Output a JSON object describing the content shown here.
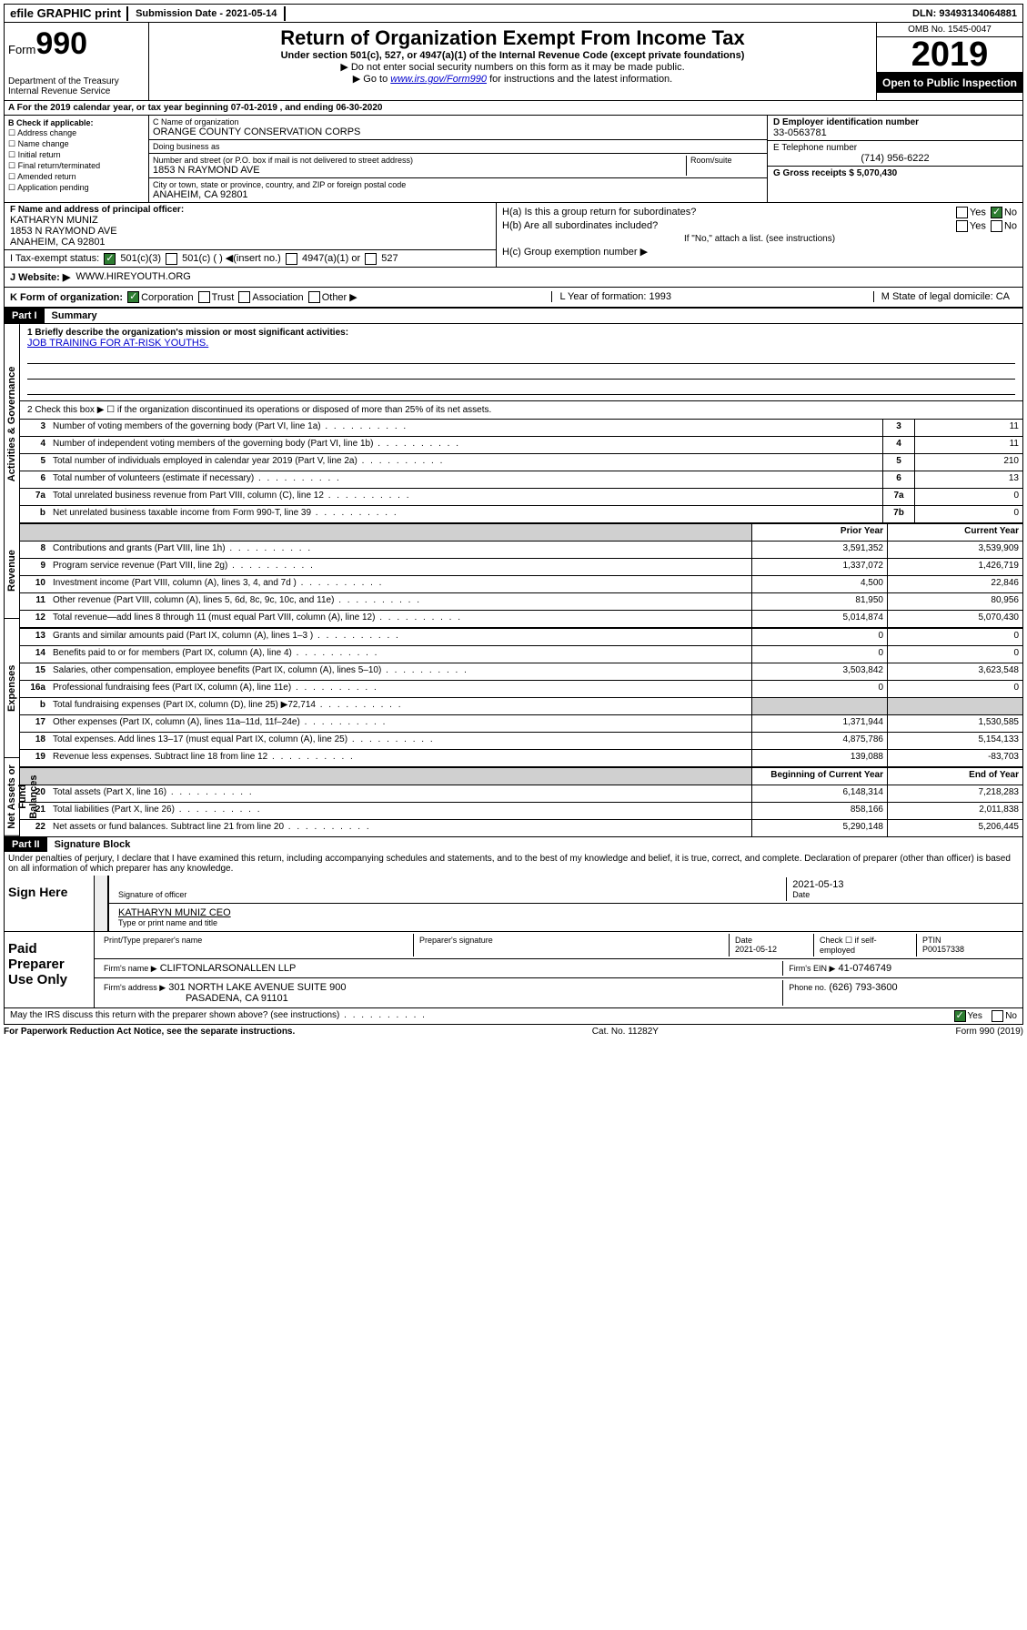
{
  "top": {
    "efile": "efile GRAPHIC print",
    "submission_label": "Submission Date - 2021-05-14",
    "dln": "DLN: 93493134064881"
  },
  "header": {
    "form_label": "Form",
    "form_number": "990",
    "dept": "Department of the Treasury Internal Revenue Service",
    "title": "Return of Organization Exempt From Income Tax",
    "sub1": "Under section 501(c), 527, or 4947(a)(1) of the Internal Revenue Code (except private foundations)",
    "sub2": "▶ Do not enter social security numbers on this form as it may be made public.",
    "sub3_pre": "▶ Go to ",
    "sub3_link": "www.irs.gov/Form990",
    "sub3_post": " for instructions and the latest information.",
    "omb": "OMB No. 1545-0047",
    "year": "2019",
    "inspection": "Open to Public Inspection"
  },
  "period": "A For the 2019 calendar year, or tax year beginning 07-01-2019   , and ending 06-30-2020",
  "checkB": {
    "label": "B Check if applicable:",
    "items": [
      "☐ Address change",
      "☐ Name change",
      "☐ Initial return",
      "☐ Final return/terminated",
      "☐ Amended return",
      "☐ Application pending"
    ]
  },
  "org": {
    "name_lbl": "C Name of organization",
    "name": "ORANGE COUNTY CONSERVATION CORPS",
    "dba_lbl": "Doing business as",
    "addr_lbl": "Number and street (or P.O. box if mail is not delivered to street address)",
    "room_lbl": "Room/suite",
    "addr": "1853 N RAYMOND AVE",
    "city_lbl": "City or town, state or province, country, and ZIP or foreign postal code",
    "city": "ANAHEIM, CA  92801"
  },
  "right": {
    "ein_lbl": "D Employer identification number",
    "ein": "33-0563781",
    "tel_lbl": "E Telephone number",
    "tel": "(714) 956-6222",
    "gross_lbl": "G Gross receipts $ 5,070,430"
  },
  "f": {
    "lbl": "F Name and address of principal officer:",
    "name": "KATHARYN MUNIZ",
    "addr1": "1853 N RAYMOND AVE",
    "addr2": "ANAHEIM, CA  92801"
  },
  "h": {
    "a": "H(a)  Is this a group return for subordinates?",
    "b": "H(b)  Are all subordinates included?",
    "b_note": "If \"No,\" attach a list. (see instructions)",
    "c": "H(c)  Group exemption number ▶",
    "yes": "Yes",
    "no": "No"
  },
  "i": {
    "lbl": "I   Tax-exempt status:",
    "c3": "501(c)(3)",
    "c": "501(c) (  ) ◀(insert no.)",
    "a1": "4947(a)(1) or",
    "s527": "527"
  },
  "j": {
    "lbl": "J   Website: ▶",
    "val": "WWW.HIREYOUTH.ORG"
  },
  "k": {
    "lbl": "K Form of organization:",
    "corp": "Corporation",
    "trust": "Trust",
    "assoc": "Association",
    "other": "Other ▶"
  },
  "l": {
    "lbl": "L Year of formation: 1993"
  },
  "m": {
    "lbl": "M State of legal domicile: CA"
  },
  "part1": {
    "hdr": "Part I",
    "title": "Summary",
    "mission_lbl": "1   Briefly describe the organization's mission or most significant activities:",
    "mission": "JOB TRAINING FOR AT-RISK YOUTHS.",
    "line2": "2   Check this box ▶ ☐  if the organization discontinued its operations or disposed of more than 25% of its net assets.",
    "sides": {
      "gov": "Activities & Governance",
      "rev": "Revenue",
      "exp": "Expenses",
      "net": "Net Assets or Fund Balances"
    },
    "cols": {
      "prior": "Prior Year",
      "current": "Current Year",
      "begin": "Beginning of Current Year",
      "end": "End of Year"
    },
    "gov_lines": [
      {
        "n": "3",
        "d": "Number of voting members of the governing body (Part VI, line 1a)",
        "b": "3",
        "v": "11"
      },
      {
        "n": "4",
        "d": "Number of independent voting members of the governing body (Part VI, line 1b)",
        "b": "4",
        "v": "11"
      },
      {
        "n": "5",
        "d": "Total number of individuals employed in calendar year 2019 (Part V, line 2a)",
        "b": "5",
        "v": "210"
      },
      {
        "n": "6",
        "d": "Total number of volunteers (estimate if necessary)",
        "b": "6",
        "v": "13"
      },
      {
        "n": "7a",
        "d": "Total unrelated business revenue from Part VIII, column (C), line 12",
        "b": "7a",
        "v": "0"
      },
      {
        "n": "b",
        "d": "Net unrelated business taxable income from Form 990-T, line 39",
        "b": "7b",
        "v": "0"
      }
    ],
    "rev_lines": [
      {
        "n": "8",
        "d": "Contributions and grants (Part VIII, line 1h)",
        "p": "3,591,352",
        "c": "3,539,909"
      },
      {
        "n": "9",
        "d": "Program service revenue (Part VIII, line 2g)",
        "p": "1,337,072",
        "c": "1,426,719"
      },
      {
        "n": "10",
        "d": "Investment income (Part VIII, column (A), lines 3, 4, and 7d )",
        "p": "4,500",
        "c": "22,846"
      },
      {
        "n": "11",
        "d": "Other revenue (Part VIII, column (A), lines 5, 6d, 8c, 9c, 10c, and 11e)",
        "p": "81,950",
        "c": "80,956"
      },
      {
        "n": "12",
        "d": "Total revenue—add lines 8 through 11 (must equal Part VIII, column (A), line 12)",
        "p": "5,014,874",
        "c": "5,070,430"
      }
    ],
    "exp_lines": [
      {
        "n": "13",
        "d": "Grants and similar amounts paid (Part IX, column (A), lines 1–3 )",
        "p": "0",
        "c": "0"
      },
      {
        "n": "14",
        "d": "Benefits paid to or for members (Part IX, column (A), line 4)",
        "p": "0",
        "c": "0"
      },
      {
        "n": "15",
        "d": "Salaries, other compensation, employee benefits (Part IX, column (A), lines 5–10)",
        "p": "3,503,842",
        "c": "3,623,548"
      },
      {
        "n": "16a",
        "d": "Professional fundraising fees (Part IX, column (A), line 11e)",
        "p": "0",
        "c": "0"
      },
      {
        "n": "b",
        "d": "Total fundraising expenses (Part IX, column (D), line 25) ▶72,714",
        "p": "",
        "c": "",
        "shade": true
      },
      {
        "n": "17",
        "d": "Other expenses (Part IX, column (A), lines 11a–11d, 11f–24e)",
        "p": "1,371,944",
        "c": "1,530,585"
      },
      {
        "n": "18",
        "d": "Total expenses. Add lines 13–17 (must equal Part IX, column (A), line 25)",
        "p": "4,875,786",
        "c": "5,154,133"
      },
      {
        "n": "19",
        "d": "Revenue less expenses. Subtract line 18 from line 12",
        "p": "139,088",
        "c": "-83,703"
      }
    ],
    "net_lines": [
      {
        "n": "20",
        "d": "Total assets (Part X, line 16)",
        "p": "6,148,314",
        "c": "7,218,283"
      },
      {
        "n": "21",
        "d": "Total liabilities (Part X, line 26)",
        "p": "858,166",
        "c": "2,011,838"
      },
      {
        "n": "22",
        "d": "Net assets or fund balances. Subtract line 21 from line 20",
        "p": "5,290,148",
        "c": "5,206,445"
      }
    ]
  },
  "part2": {
    "hdr": "Part II",
    "title": "Signature Block",
    "perjury": "Under penalties of perjury, I declare that I have examined this return, including accompanying schedules and statements, and to the best of my knowledge and belief, it is true, correct, and complete. Declaration of preparer (other than officer) is based on all information of which preparer has any knowledge."
  },
  "sign": {
    "here": "Sign Here",
    "sig_lbl": "Signature of officer",
    "date": "2021-05-13",
    "date_lbl": "Date",
    "name": "KATHARYN MUNIZ CEO",
    "name_lbl": "Type or print name and title"
  },
  "paid": {
    "lbl": "Paid Preparer Use Only",
    "c1": "Print/Type preparer's name",
    "c2": "Preparer's signature",
    "c3_lbl": "Date",
    "c3": "2021-05-12",
    "c4_lbl": "Check ☐ if self-employed",
    "c5_lbl": "PTIN",
    "c5": "P00157338",
    "firm_lbl": "Firm's name    ▶",
    "firm": "CLIFTONLARSONALLEN LLP",
    "ein_lbl": "Firm's EIN ▶",
    "ein": "41-0746749",
    "addr_lbl": "Firm's address ▶",
    "addr": "301 NORTH LAKE AVENUE SUITE 900",
    "addr2": "PASADENA, CA  91101",
    "phone_lbl": "Phone no.",
    "phone": "(626) 793-3600"
  },
  "discuss": {
    "q": "May the IRS discuss this return with the preparer shown above? (see instructions)",
    "yes": "Yes",
    "no": "No"
  },
  "footer": {
    "left": "For Paperwork Reduction Act Notice, see the separate instructions.",
    "mid": "Cat. No. 11282Y",
    "right": "Form 990 (2019)"
  }
}
